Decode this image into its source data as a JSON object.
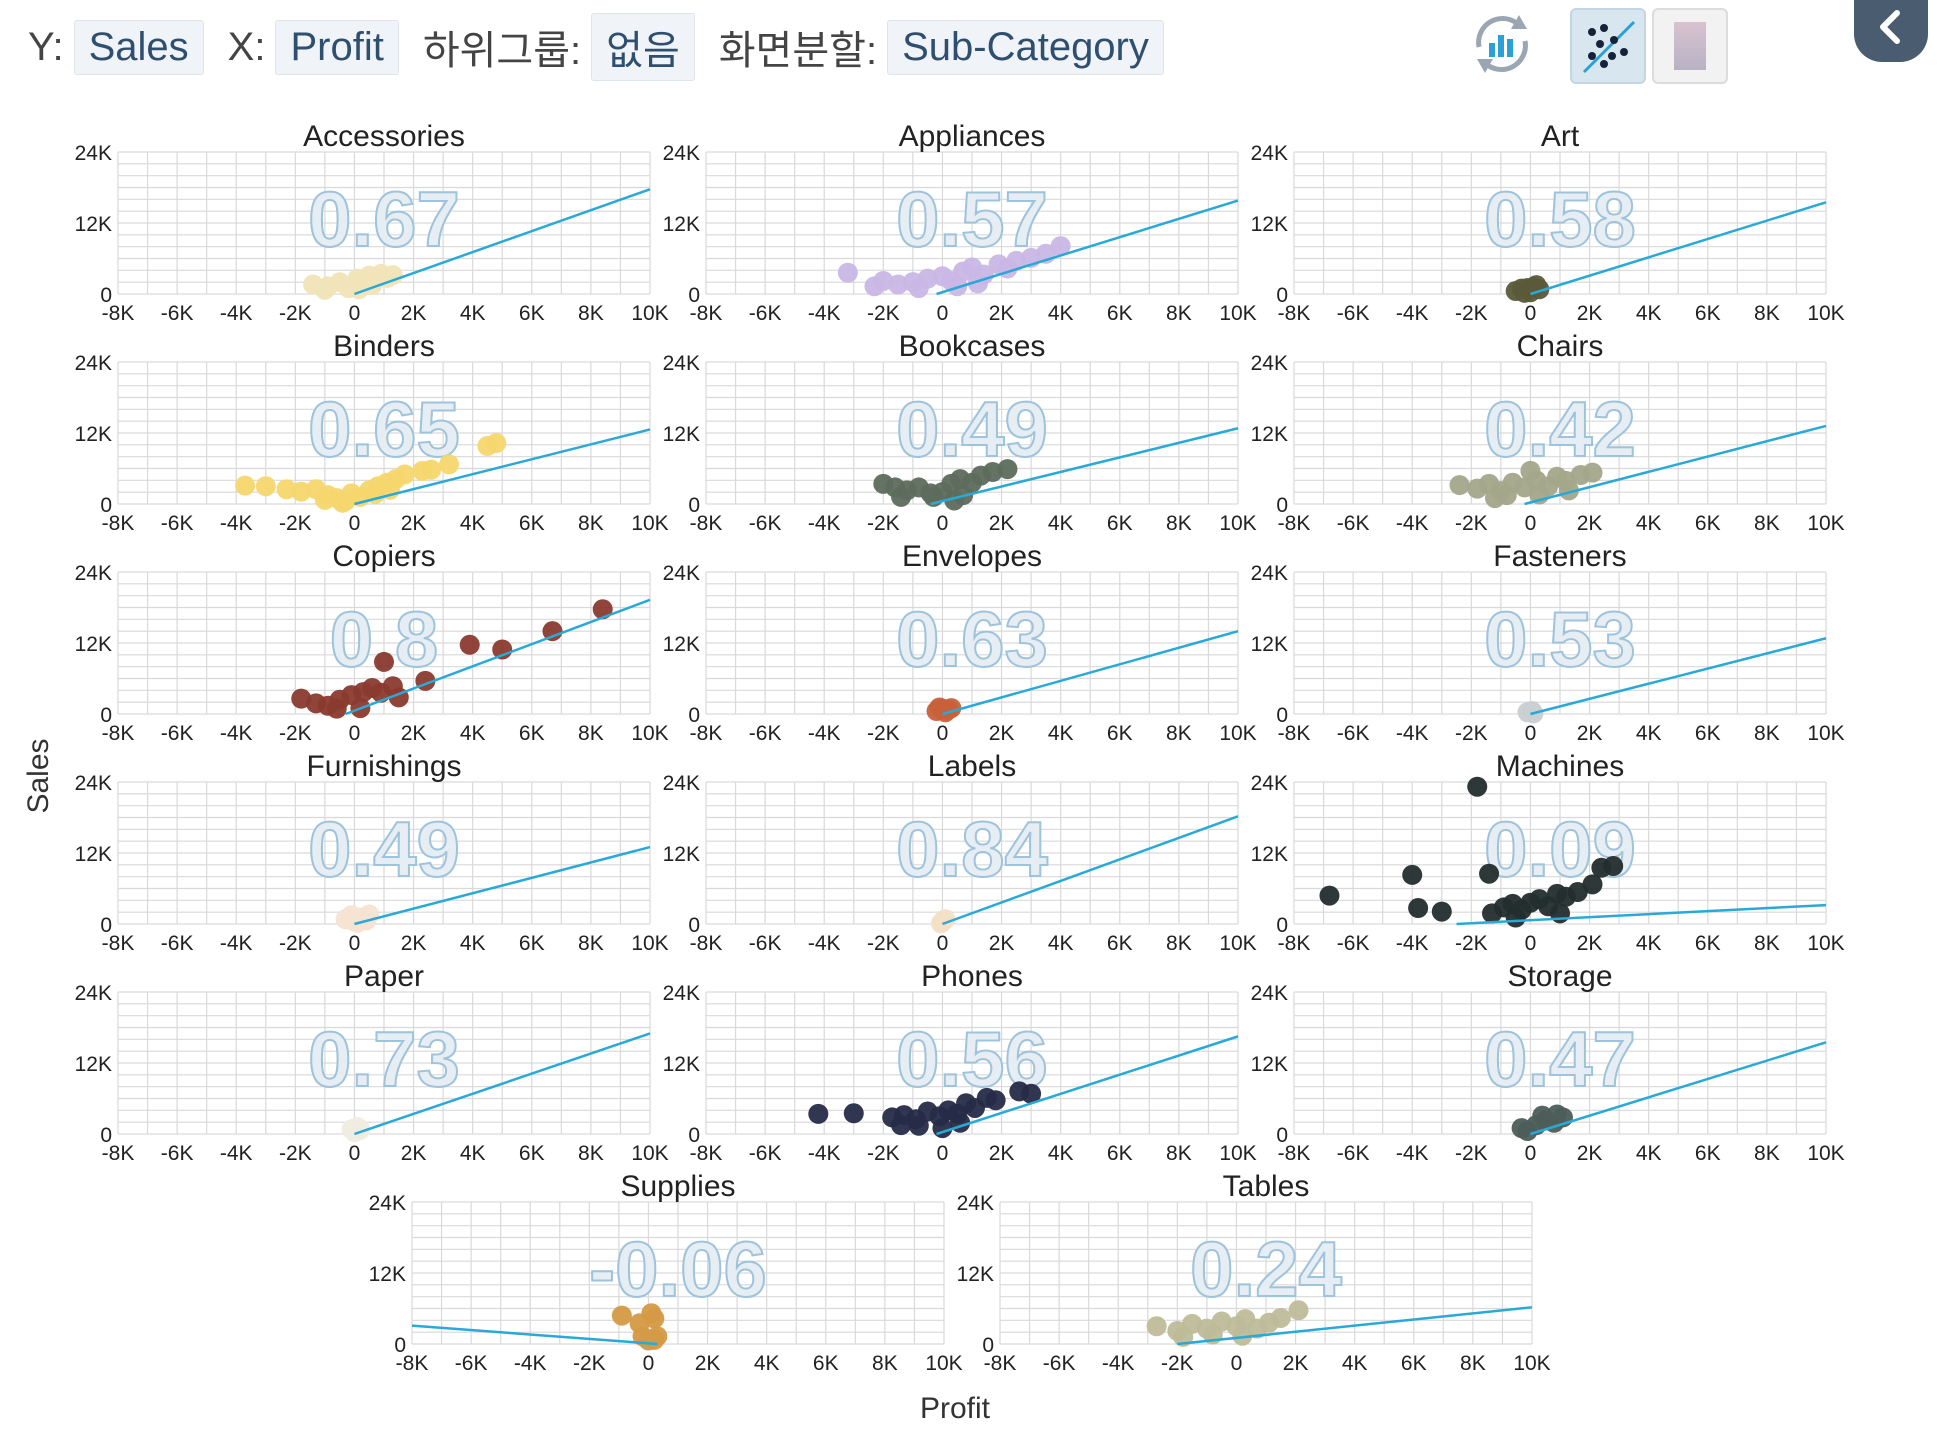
{
  "toolbar": {
    "y_label": "Y:",
    "y_value": "Sales",
    "x_label": "X:",
    "x_value": "Profit",
    "subgroup_label": "하위그룹:",
    "subgroup_value": "없음",
    "split_label": "화면분할:",
    "split_value": "Sub-Category"
  },
  "icons": {
    "refresh": "refresh-chart-icon",
    "scatter": "scatter-trend-icon",
    "color": "color-swatch-icon",
    "back": "chevron-left-icon"
  },
  "colors": {
    "trend_line": "#29a9d8",
    "grid": "#d9d9d9",
    "active_button_bg": "#d8e6f0",
    "back_button": "#4a5d70"
  },
  "chart_data": {
    "type": "scatter",
    "xlabel": "Profit",
    "ylabel": "Sales",
    "xlim": [
      -8000,
      10000
    ],
    "ylim": [
      0,
      24000
    ],
    "x_ticks": [
      "-8K",
      "-6K",
      "-4K",
      "-2K",
      "0",
      "2K",
      "4K",
      "6K",
      "8K",
      "10K"
    ],
    "y_ticks": [
      "0",
      "12K",
      "24K"
    ],
    "panels": [
      {
        "name": "Accessories",
        "correlation": "0.67",
        "color": "#f1e4b8",
        "trend": [
          [
            0,
            0
          ],
          [
            10000,
            17700
          ]
        ],
        "points": [
          [
            -1400,
            1600
          ],
          [
            -900,
            1300
          ],
          [
            -500,
            2000
          ],
          [
            -200,
            1000
          ],
          [
            100,
            2600
          ],
          [
            300,
            1900
          ],
          [
            500,
            3100
          ],
          [
            700,
            2300
          ],
          [
            900,
            3400
          ],
          [
            1100,
            2700
          ],
          [
            1300,
            3200
          ],
          [
            150,
            800
          ],
          [
            -1000,
            700
          ],
          [
            600,
            1500
          ]
        ]
      },
      {
        "name": "Appliances",
        "correlation": "0.57",
        "color": "#c9b6e6",
        "trend": [
          [
            -200,
            0
          ],
          [
            10000,
            15800
          ]
        ],
        "points": [
          [
            -3200,
            3600
          ],
          [
            -2000,
            2200
          ],
          [
            -1500,
            1600
          ],
          [
            -1000,
            2000
          ],
          [
            -500,
            2600
          ],
          [
            0,
            3000
          ],
          [
            300,
            2200
          ],
          [
            700,
            3800
          ],
          [
            1000,
            4500
          ],
          [
            1400,
            3300
          ],
          [
            1900,
            5000
          ],
          [
            2500,
            5600
          ],
          [
            3500,
            6800
          ],
          [
            4000,
            8100
          ],
          [
            -2300,
            1300
          ],
          [
            -800,
            1000
          ],
          [
            500,
            1300
          ],
          [
            1200,
            1800
          ],
          [
            2200,
            4300
          ],
          [
            3000,
            6100
          ]
        ]
      },
      {
        "name": "Art",
        "correlation": "0.58",
        "color": "#5b5a3a",
        "trend": [
          [
            0,
            0
          ],
          [
            10000,
            15500
          ]
        ],
        "points": [
          [
            -500,
            500
          ],
          [
            -300,
            900
          ],
          [
            -100,
            1000
          ],
          [
            100,
            1200
          ],
          [
            300,
            800
          ],
          [
            0,
            300
          ],
          [
            -200,
            200
          ],
          [
            200,
            1500
          ]
        ]
      },
      {
        "name": "Binders",
        "correlation": "0.65",
        "color": "#f5d76e",
        "trend": [
          [
            0,
            0
          ],
          [
            10000,
            12600
          ]
        ],
        "points": [
          [
            -3700,
            3100
          ],
          [
            -3000,
            3000
          ],
          [
            -2300,
            2500
          ],
          [
            -1800,
            2100
          ],
          [
            -1300,
            2500
          ],
          [
            -900,
            1500
          ],
          [
            -600,
            1000
          ],
          [
            -300,
            500
          ],
          [
            -100,
            1800
          ],
          [
            200,
            1200
          ],
          [
            500,
            2300
          ],
          [
            800,
            3000
          ],
          [
            1100,
            3600
          ],
          [
            1400,
            4200
          ],
          [
            1700,
            5000
          ],
          [
            2300,
            5600
          ],
          [
            2600,
            5800
          ],
          [
            3200,
            6700
          ],
          [
            4500,
            9800
          ],
          [
            4800,
            10300
          ],
          [
            -1000,
            700
          ],
          [
            -400,
            200
          ],
          [
            700,
            1700
          ],
          [
            1200,
            2400
          ]
        ]
      },
      {
        "name": "Bookcases",
        "correlation": "0.49",
        "color": "#5d6b5c",
        "trend": [
          [
            -400,
            0
          ],
          [
            10000,
            12800
          ]
        ],
        "points": [
          [
            -2000,
            3400
          ],
          [
            -1600,
            2800
          ],
          [
            -1200,
            2300
          ],
          [
            -800,
            2800
          ],
          [
            -400,
            1800
          ],
          [
            0,
            2000
          ],
          [
            300,
            3400
          ],
          [
            600,
            4200
          ],
          [
            1000,
            3600
          ],
          [
            1300,
            4800
          ],
          [
            1700,
            5400
          ],
          [
            2200,
            5900
          ],
          [
            -300,
            1200
          ],
          [
            700,
            1500
          ],
          [
            -1400,
            1200
          ],
          [
            400,
            600
          ]
        ]
      },
      {
        "name": "Chairs",
        "correlation": "0.42",
        "color": "#a3a78a",
        "trend": [
          [
            -200,
            0
          ],
          [
            10000,
            13200
          ]
        ],
        "points": [
          [
            -2400,
            3200
          ],
          [
            -1800,
            2600
          ],
          [
            -1400,
            3400
          ],
          [
            -1000,
            2200
          ],
          [
            -600,
            3600
          ],
          [
            -200,
            2800
          ],
          [
            200,
            4000
          ],
          [
            600,
            3000
          ],
          [
            900,
            4600
          ],
          [
            1200,
            3900
          ],
          [
            1700,
            4900
          ],
          [
            2100,
            5300
          ],
          [
            -800,
            1500
          ],
          [
            300,
            1600
          ],
          [
            -1200,
            1000
          ],
          [
            1300,
            2300
          ],
          [
            0,
            5600
          ]
        ]
      },
      {
        "name": "Copiers",
        "correlation": "0.8",
        "color": "#8b3a2e",
        "trend": [
          [
            -300,
            0
          ],
          [
            10000,
            19300
          ]
        ],
        "points": [
          [
            -1800,
            2600
          ],
          [
            -1300,
            1800
          ],
          [
            -900,
            1400
          ],
          [
            -500,
            2400
          ],
          [
            -100,
            3200
          ],
          [
            300,
            3700
          ],
          [
            600,
            4400
          ],
          [
            900,
            3600
          ],
          [
            1300,
            4700
          ],
          [
            2400,
            5600
          ],
          [
            3900,
            11700
          ],
          [
            5000,
            10900
          ],
          [
            6700,
            14000
          ],
          [
            8400,
            17700
          ],
          [
            1000,
            8800
          ],
          [
            -600,
            900
          ],
          [
            200,
            1000
          ],
          [
            1500,
            2800
          ]
        ]
      },
      {
        "name": "Envelopes",
        "correlation": "0.63",
        "color": "#c8613a",
        "trend": [
          [
            0,
            0
          ],
          [
            10000,
            14000
          ]
        ],
        "points": [
          [
            -200,
            500
          ],
          [
            0,
            900
          ],
          [
            200,
            700
          ],
          [
            100,
            300
          ],
          [
            -100,
            1100
          ],
          [
            300,
            1000
          ]
        ]
      },
      {
        "name": "Fasteners",
        "correlation": "0.53",
        "color": "#c9cfd1",
        "trend": [
          [
            0,
            0
          ],
          [
            10000,
            12800
          ]
        ],
        "points": [
          [
            -100,
            300
          ],
          [
            50,
            500
          ],
          [
            100,
            100
          ]
        ]
      },
      {
        "name": "Furnishings",
        "correlation": "0.49",
        "color": "#f6e3d2",
        "trend": [
          [
            0,
            0
          ],
          [
            10000,
            13000
          ]
        ],
        "points": [
          [
            -300,
            800
          ],
          [
            0,
            400
          ],
          [
            200,
            1100
          ],
          [
            500,
            1600
          ],
          [
            100,
            200
          ],
          [
            -100,
            1500
          ],
          [
            400,
            600
          ]
        ]
      },
      {
        "name": "Labels",
        "correlation": "0.84",
        "color": "#f4dfc6",
        "trend": [
          [
            0,
            0
          ],
          [
            10000,
            18200
          ]
        ],
        "points": [
          [
            0,
            400
          ],
          [
            100,
            800
          ],
          [
            -50,
            100
          ]
        ]
      },
      {
        "name": "Machines",
        "correlation": "0.09",
        "color": "#232d2d",
        "trend": [
          [
            -2500,
            0
          ],
          [
            10000,
            3200
          ]
        ],
        "points": [
          [
            -6800,
            4800
          ],
          [
            -4000,
            8300
          ],
          [
            -3800,
            2700
          ],
          [
            -3000,
            2100
          ],
          [
            -1800,
            23200
          ],
          [
            -1400,
            8500
          ],
          [
            -1300,
            1800
          ],
          [
            -900,
            2800
          ],
          [
            -600,
            3400
          ],
          [
            -300,
            2400
          ],
          [
            0,
            3600
          ],
          [
            300,
            4200
          ],
          [
            600,
            3000
          ],
          [
            900,
            5100
          ],
          [
            1200,
            4600
          ],
          [
            1600,
            5400
          ],
          [
            2100,
            6700
          ],
          [
            2400,
            9500
          ],
          [
            2800,
            9800
          ],
          [
            1000,
            1800
          ],
          [
            -500,
            1100
          ]
        ]
      },
      {
        "name": "Paper",
        "correlation": "0.73",
        "color": "#efece0",
        "trend": [
          [
            0,
            0
          ],
          [
            10000,
            17000
          ]
        ],
        "points": [
          [
            0,
            300
          ],
          [
            200,
            700
          ],
          [
            -100,
            800
          ],
          [
            100,
            1200
          ]
        ]
      },
      {
        "name": "Phones",
        "correlation": "0.56",
        "color": "#262b48",
        "trend": [
          [
            -200,
            0
          ],
          [
            10000,
            16500
          ]
        ],
        "points": [
          [
            -4200,
            3400
          ],
          [
            -3000,
            3500
          ],
          [
            -1700,
            2800
          ],
          [
            -1300,
            3200
          ],
          [
            -900,
            2500
          ],
          [
            -500,
            3800
          ],
          [
            -100,
            3000
          ],
          [
            200,
            4000
          ],
          [
            500,
            3400
          ],
          [
            800,
            5200
          ],
          [
            1100,
            4400
          ],
          [
            1500,
            6100
          ],
          [
            1800,
            5700
          ],
          [
            2600,
            7200
          ],
          [
            3000,
            6800
          ],
          [
            -800,
            1400
          ],
          [
            0,
            1000
          ],
          [
            600,
            1900
          ],
          [
            -1400,
            1500
          ]
        ]
      },
      {
        "name": "Storage",
        "correlation": "0.47",
        "color": "#4d5d58",
        "trend": [
          [
            0,
            0
          ],
          [
            10000,
            15500
          ]
        ],
        "points": [
          [
            -100,
            500
          ],
          [
            200,
            1500
          ],
          [
            500,
            2300
          ],
          [
            800,
            1900
          ],
          [
            1100,
            2800
          ],
          [
            -300,
            1000
          ],
          [
            400,
            3100
          ],
          [
            900,
            3300
          ]
        ]
      },
      {
        "name": "Supplies",
        "correlation": "-0.06",
        "color": "#d49a45",
        "trend": [
          [
            -8000,
            3100
          ],
          [
            300,
            0
          ]
        ],
        "points": [
          [
            -900,
            4800
          ],
          [
            -300,
            3500
          ],
          [
            100,
            5200
          ],
          [
            200,
            4300
          ],
          [
            -200,
            1300
          ],
          [
            0,
            600
          ],
          [
            200,
            700
          ],
          [
            300,
            1300
          ]
        ]
      },
      {
        "name": "Tables",
        "correlation": "0.24",
        "color": "#bebc98",
        "trend": [
          [
            -2000,
            0
          ],
          [
            10000,
            6200
          ]
        ],
        "points": [
          [
            -2700,
            3000
          ],
          [
            -2000,
            2200
          ],
          [
            -1500,
            3400
          ],
          [
            -1000,
            2600
          ],
          [
            -500,
            3800
          ],
          [
            0,
            3000
          ],
          [
            300,
            4200
          ],
          [
            700,
            2600
          ],
          [
            1100,
            3600
          ],
          [
            1500,
            4400
          ],
          [
            2100,
            5700
          ],
          [
            -1800,
            1200
          ],
          [
            200,
            1400
          ],
          [
            -800,
            1600
          ]
        ]
      }
    ]
  }
}
